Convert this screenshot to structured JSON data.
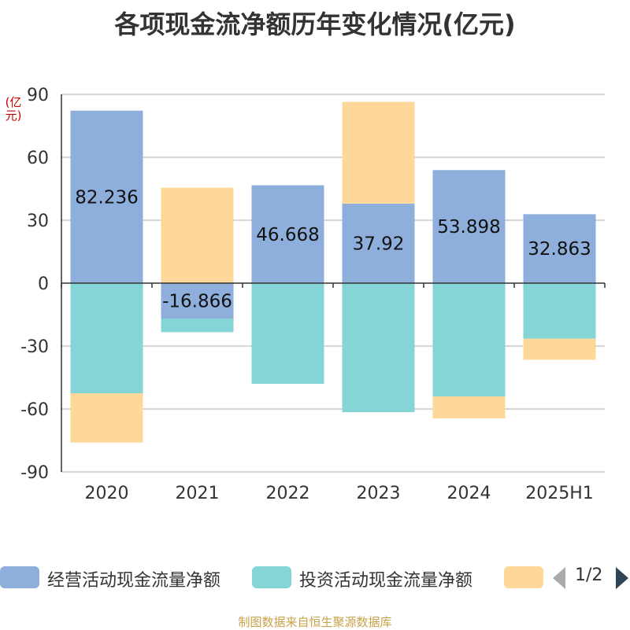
{
  "title": "各项现金流净额历年变化情况(亿元)",
  "unit_label": "(亿元)",
  "footer": "制图数据来自恒生聚源数据库",
  "legend": {
    "items": [
      {
        "label": "经营活动现金流量净额",
        "color": "#8eaedb"
      },
      {
        "label": "投资活动现金流量净额",
        "color": "#86d5d6"
      },
      {
        "label": "",
        "color": "#fed899"
      }
    ],
    "page": "1/2"
  },
  "chart_data": {
    "type": "bar",
    "stacked": true,
    "categories": [
      "2020",
      "2021",
      "2022",
      "2023",
      "2024",
      "2025H1"
    ],
    "ylim": [
      -90,
      90
    ],
    "yticks": [
      90,
      60,
      30,
      0,
      -30,
      -60,
      -90
    ],
    "series": [
      {
        "name": "经营活动现金流量净额",
        "color": "#8eaedb",
        "values": [
          82.236,
          -16.866,
          46.668,
          37.92,
          53.898,
          32.863
        ],
        "labels": [
          "82.236",
          "-16.866",
          "46.668",
          "37.92",
          "53.898",
          "32.863"
        ]
      },
      {
        "name": "投资活动现金流量净额",
        "color": "#86d5d6",
        "values": [
          -52.5,
          -6.5,
          -48.0,
          -61.5,
          -54.0,
          -26.5
        ]
      },
      {
        "name": "",
        "color": "#fed899",
        "values": [
          -23.5,
          45.5,
          0,
          48.5,
          -10.5,
          -10.0
        ]
      }
    ],
    "grid": true
  }
}
